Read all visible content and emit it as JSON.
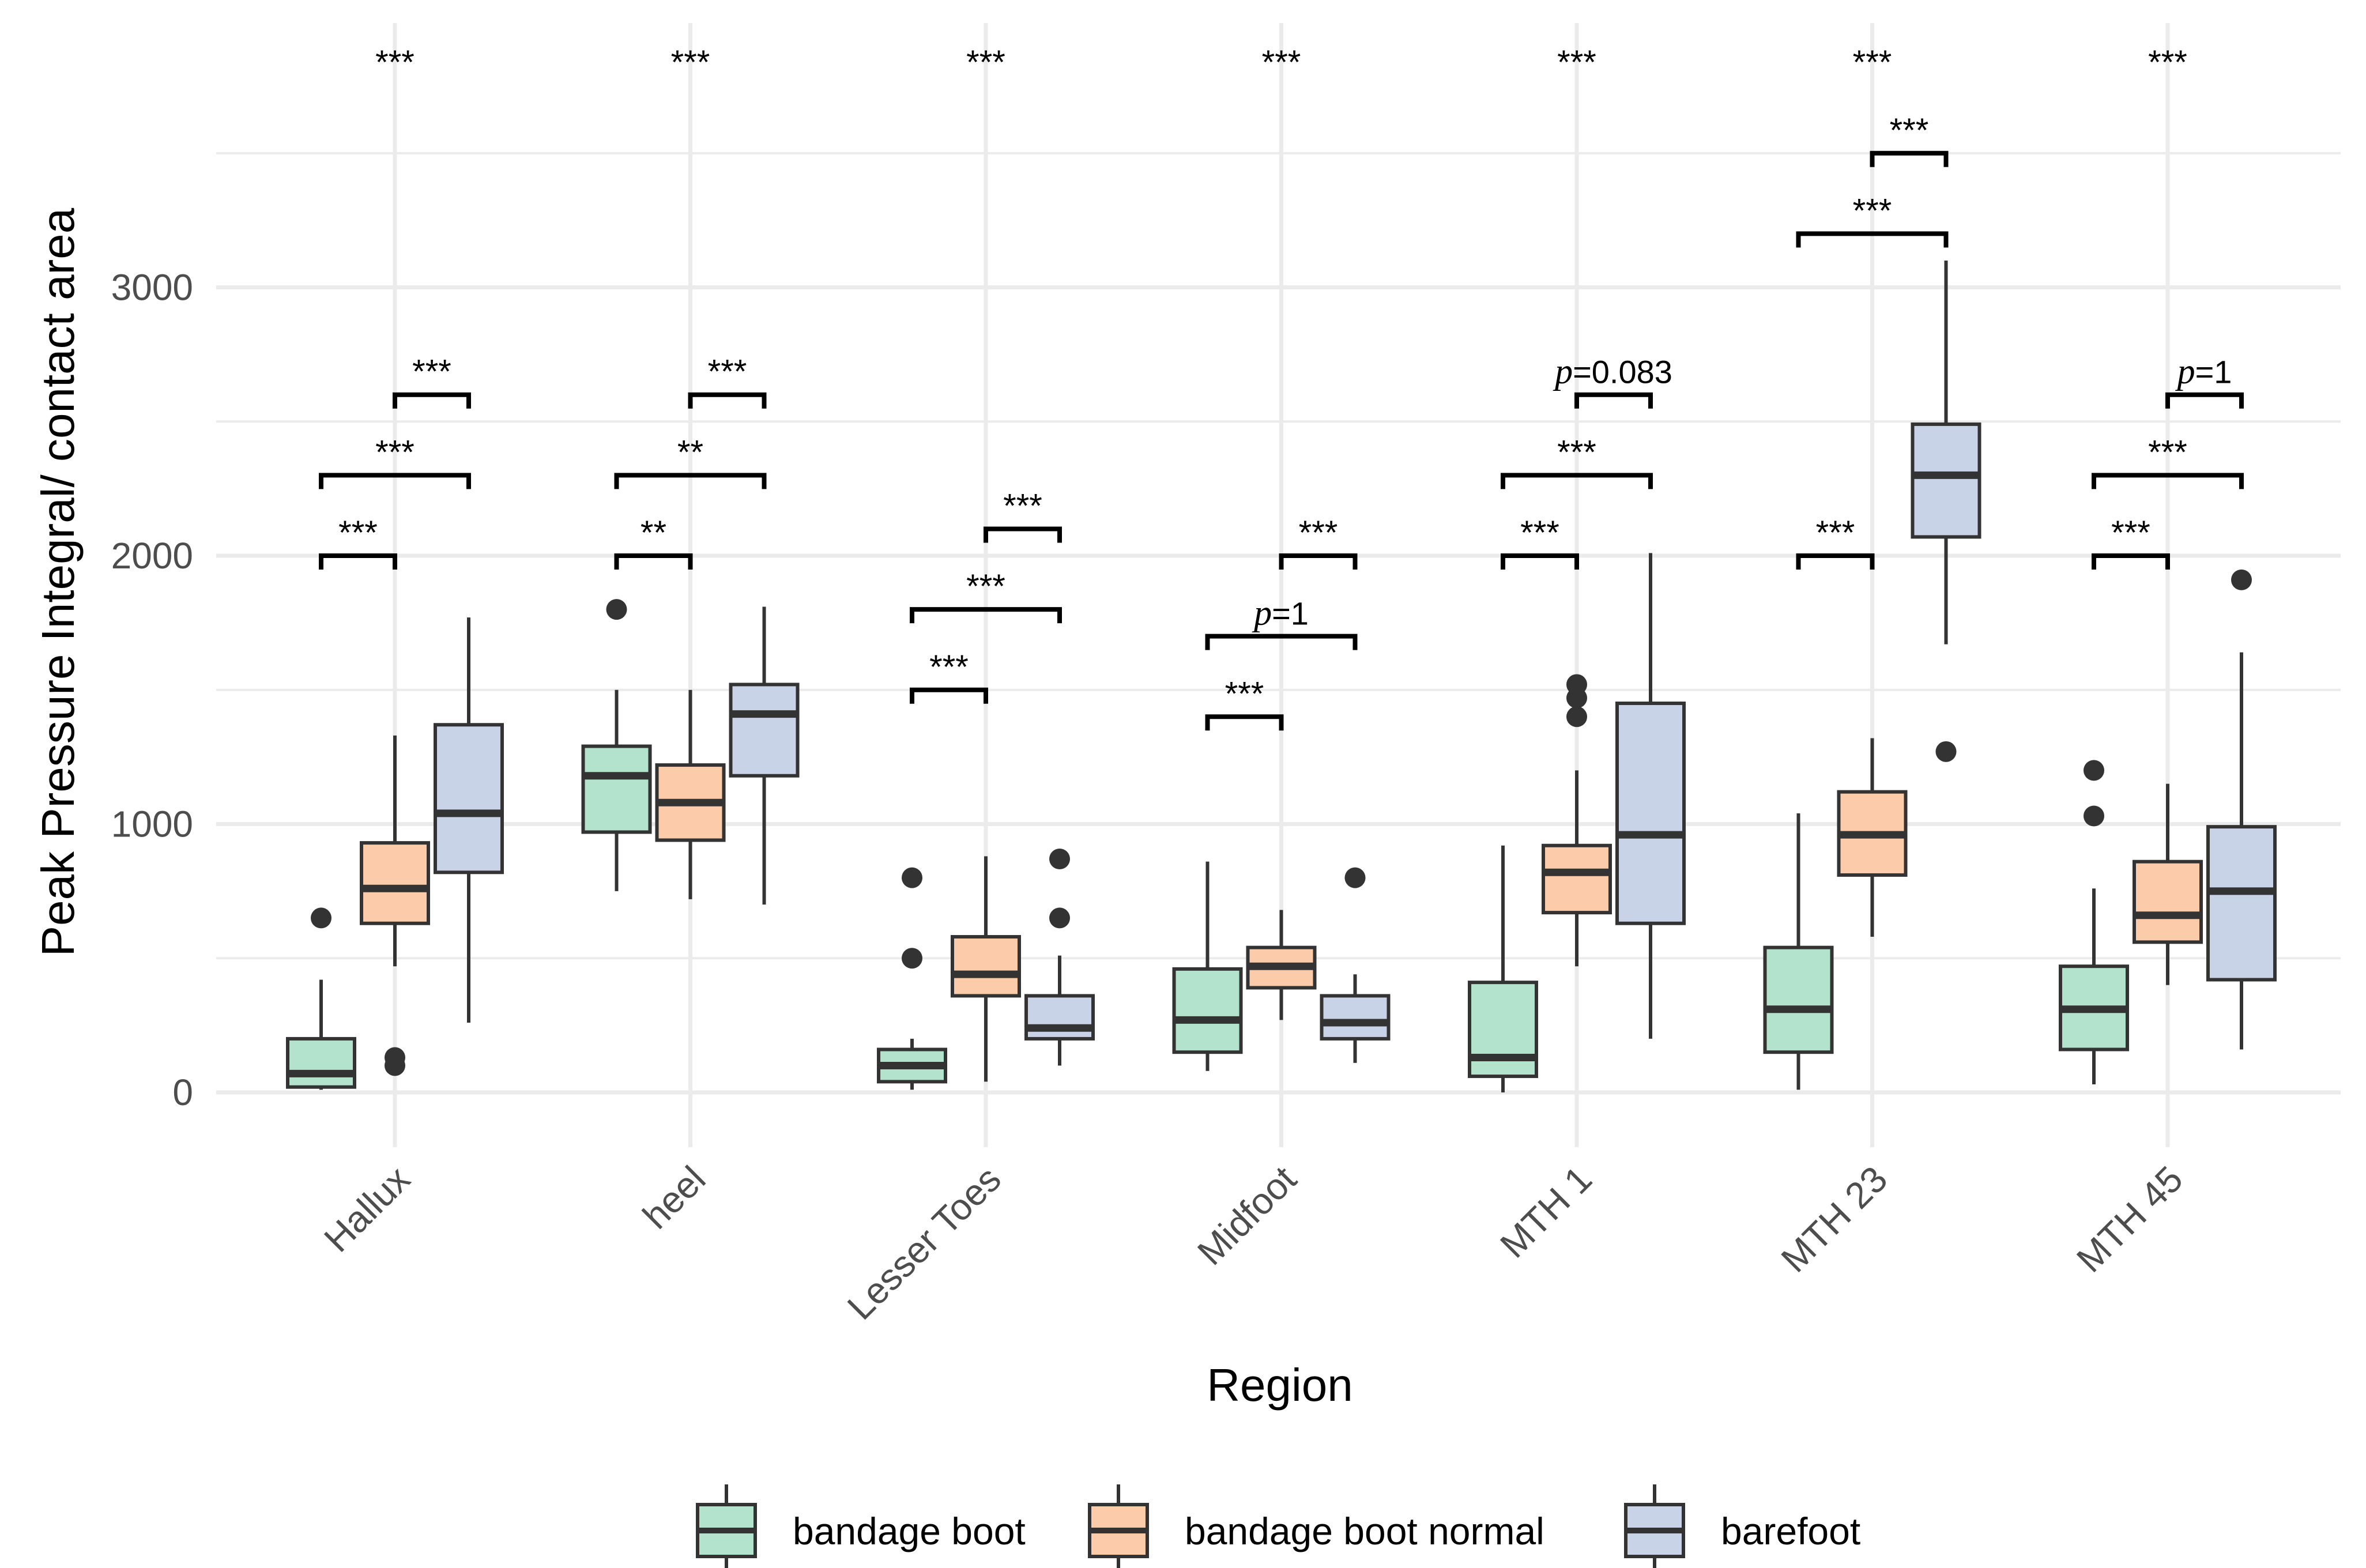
{
  "chart_data": {
    "type": "boxplot",
    "title": "",
    "xlabel": "Region",
    "ylabel": "Peak Pressure Integral/ contact area",
    "ylim": [
      -200,
      3950
    ],
    "yticks": [
      0,
      1000,
      2000,
      3000
    ],
    "grid": true,
    "legend_position": "bottom",
    "categories": [
      "Hallux",
      "heel",
      "Lesser Toes",
      "Midfoot",
      "MTH 1",
      "MTH 23",
      "MTH 45"
    ],
    "groups": [
      {
        "name": "bandage boot",
        "color": "#b3e3cc"
      },
      {
        "name": "bandage boot normal",
        "color": "#fcccaa"
      },
      {
        "name": "barefoot",
        "color": "#c9d3e8"
      }
    ],
    "boxes": [
      [
        {
          "min": 10,
          "q1": 20,
          "median": 70,
          "q3": 200,
          "max": 420,
          "outliers": [
            650
          ]
        },
        {
          "min": 470,
          "q1": 630,
          "median": 760,
          "q3": 930,
          "max": 1330,
          "outliers": [
            100,
            130
          ]
        },
        {
          "min": 260,
          "q1": 820,
          "median": 1040,
          "q3": 1370,
          "max": 1770,
          "outliers": []
        }
      ],
      [
        {
          "min": 750,
          "q1": 970,
          "median": 1180,
          "q3": 1290,
          "max": 1500,
          "outliers": [
            1800
          ]
        },
        {
          "min": 720,
          "q1": 940,
          "median": 1080,
          "q3": 1220,
          "max": 1500,
          "outliers": []
        },
        {
          "min": 700,
          "q1": 1180,
          "median": 1410,
          "q3": 1520,
          "max": 1810,
          "outliers": []
        }
      ],
      [
        {
          "min": 10,
          "q1": 40,
          "median": 100,
          "q3": 160,
          "max": 200,
          "outliers": [
            500,
            800
          ]
        },
        {
          "min": 40,
          "q1": 360,
          "median": 440,
          "q3": 580,
          "max": 880,
          "outliers": []
        },
        {
          "min": 100,
          "q1": 200,
          "median": 240,
          "q3": 360,
          "max": 510,
          "outliers": [
            650,
            870
          ]
        }
      ],
      [
        {
          "min": 80,
          "q1": 150,
          "median": 270,
          "q3": 460,
          "max": 860,
          "outliers": []
        },
        {
          "min": 270,
          "q1": 390,
          "median": 470,
          "q3": 540,
          "max": 680,
          "outliers": []
        },
        {
          "min": 110,
          "q1": 200,
          "median": 260,
          "q3": 360,
          "max": 440,
          "outliers": [
            800
          ]
        }
      ],
      [
        {
          "min": 0,
          "q1": 60,
          "median": 130,
          "q3": 410,
          "max": 920,
          "outliers": []
        },
        {
          "min": 470,
          "q1": 670,
          "median": 820,
          "q3": 920,
          "max": 1200,
          "outliers": [
            1400,
            1470,
            1520
          ]
        },
        {
          "min": 200,
          "q1": 630,
          "median": 960,
          "q3": 1450,
          "max": 2010,
          "outliers": []
        }
      ],
      [
        {
          "min": 10,
          "q1": 150,
          "median": 310,
          "q3": 540,
          "max": 1040,
          "outliers": []
        },
        {
          "min": 580,
          "q1": 810,
          "median": 960,
          "q3": 1120,
          "max": 1320,
          "outliers": []
        },
        {
          "min": 1670,
          "q1": 2070,
          "median": 2300,
          "q3": 2490,
          "max": 3100,
          "outliers": [
            1270
          ]
        }
      ],
      [
        {
          "min": 30,
          "q1": 160,
          "median": 310,
          "q3": 470,
          "max": 760,
          "outliers": [
            1030,
            1200
          ]
        },
        {
          "min": 400,
          "q1": 560,
          "median": 660,
          "q3": 860,
          "max": 1150,
          "outliers": []
        },
        {
          "min": 160,
          "q1": 420,
          "median": 750,
          "q3": 990,
          "max": 1640,
          "outliers": [
            1910
          ]
        }
      ]
    ],
    "global_labels": [
      "***",
      "***",
      "***",
      "***",
      "***",
      "***",
      "***"
    ],
    "brackets": [
      {
        "region": 0,
        "from": 0,
        "to": 1,
        "y": 2000,
        "label": "***"
      },
      {
        "region": 0,
        "from": 0,
        "to": 2,
        "y": 2300,
        "label": "***"
      },
      {
        "region": 0,
        "from": 1,
        "to": 2,
        "y": 2600,
        "label": "***"
      },
      {
        "region": 1,
        "from": 0,
        "to": 1,
        "y": 2000,
        "label": "**"
      },
      {
        "region": 1,
        "from": 0,
        "to": 2,
        "y": 2300,
        "label": "**"
      },
      {
        "region": 1,
        "from": 1,
        "to": 2,
        "y": 2600,
        "label": "***"
      },
      {
        "region": 2,
        "from": 0,
        "to": 1,
        "y": 1500,
        "label": "***"
      },
      {
        "region": 2,
        "from": 0,
        "to": 2,
        "y": 1800,
        "label": "***"
      },
      {
        "region": 2,
        "from": 1,
        "to": 2,
        "y": 2100,
        "label": "***"
      },
      {
        "region": 3,
        "from": 0,
        "to": 1,
        "y": 1400,
        "label": "***"
      },
      {
        "region": 3,
        "from": 0,
        "to": 2,
        "y": 1700,
        "label": "p=1"
      },
      {
        "region": 3,
        "from": 1,
        "to": 2,
        "y": 2000,
        "label": "***"
      },
      {
        "region": 4,
        "from": 0,
        "to": 1,
        "y": 2000,
        "label": "***"
      },
      {
        "region": 4,
        "from": 0,
        "to": 2,
        "y": 2300,
        "label": "***"
      },
      {
        "region": 4,
        "from": 1,
        "to": 2,
        "y": 2600,
        "label": "p=0.083"
      },
      {
        "region": 5,
        "from": 0,
        "to": 1,
        "y": 2000,
        "label": "***"
      },
      {
        "region": 5,
        "from": 0,
        "to": 2,
        "y": 3200,
        "label": "***"
      },
      {
        "region": 5,
        "from": 1,
        "to": 2,
        "y": 3500,
        "label": "***"
      },
      {
        "region": 6,
        "from": 0,
        "to": 1,
        "y": 2000,
        "label": "***"
      },
      {
        "region": 6,
        "from": 0,
        "to": 2,
        "y": 2300,
        "label": "***"
      },
      {
        "region": 6,
        "from": 1,
        "to": 2,
        "y": 2600,
        "label": "p=1"
      }
    ]
  }
}
